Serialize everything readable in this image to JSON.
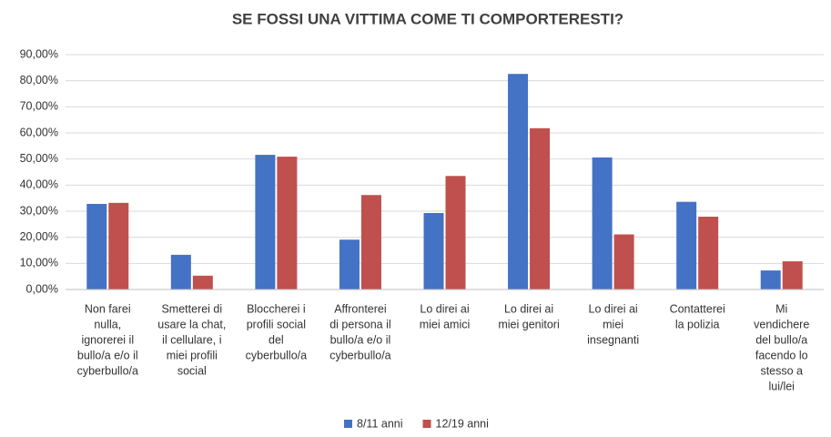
{
  "chart_data": {
    "type": "bar",
    "title": "SE FOSSI UNA VITTIMA COME TI COMPORTERESTI?",
    "categories": [
      [
        "Non farei",
        "nulla,",
        "ignorerei il",
        "bullo/a e/o il",
        "cyberbullo/a"
      ],
      [
        "Smetterei di",
        "usare la chat,",
        "il cellulare, i",
        "miei profili",
        "social"
      ],
      [
        "Bloccherei i",
        "profili social",
        "del",
        "cyberbullo/a"
      ],
      [
        "Affronterei",
        "di persona il",
        "bullo/a e/o il",
        "cyberbullo/a"
      ],
      [
        "Lo direi ai",
        "miei amici"
      ],
      [
        "Lo direi ai",
        "miei genitori"
      ],
      [
        "Lo direi ai",
        "miei",
        "insegnanti"
      ],
      [
        "Contatterei",
        "la polizia"
      ],
      [
        "Mi",
        "vendichere",
        "del bullo/a",
        "facendo lo",
        "stesso a",
        "lui/lei"
      ]
    ],
    "series": [
      {
        "name": "8/11 anni",
        "color": "#4472c4",
        "values": [
          32.8,
          13.3,
          51.6,
          19.1,
          29.3,
          82.6,
          50.6,
          33.6,
          7.3
        ]
      },
      {
        "name": "12/19 anni",
        "color": "#c0504d",
        "values": [
          33.2,
          5.3,
          50.9,
          36.2,
          43.5,
          61.8,
          21.1,
          27.9,
          10.8
        ]
      }
    ],
    "ylim": [
      0,
      90
    ],
    "yticks": [
      {
        "value": 0,
        "label": "0,00%"
      },
      {
        "value": 10,
        "label": "10,00%"
      },
      {
        "value": 20,
        "label": "20,00%"
      },
      {
        "value": 30,
        "label": "30,00%"
      },
      {
        "value": 40,
        "label": "40,00%"
      },
      {
        "value": 50,
        "label": "50,00%"
      },
      {
        "value": 60,
        "label": "60,00%"
      },
      {
        "value": 70,
        "label": "70,00%"
      },
      {
        "value": 80,
        "label": "80,00%"
      },
      {
        "value": 90,
        "label": "90,00%"
      }
    ],
    "grid": true,
    "legend": "bottom"
  }
}
